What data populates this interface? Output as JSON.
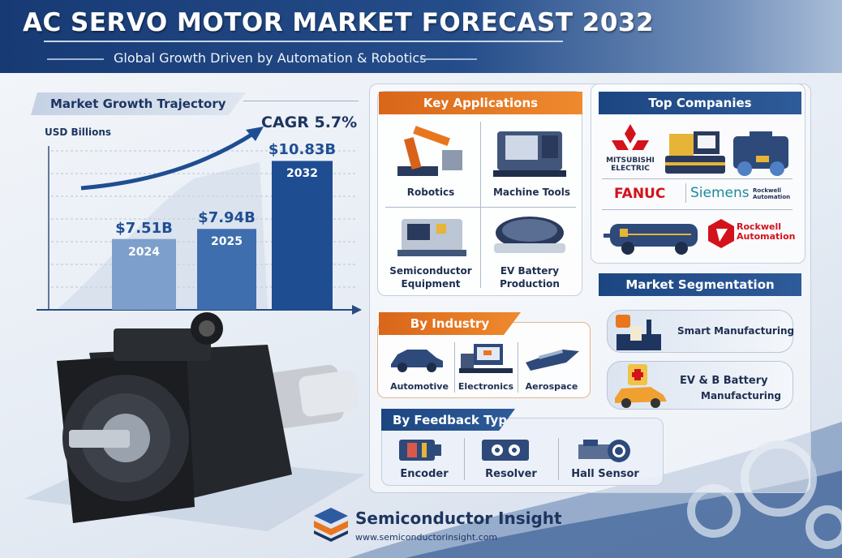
{
  "header": {
    "title": "AC SERVO MOTOR MARKET FORECAST 2032",
    "subtitle": "Global Growth Driven by Automation & Robotics"
  },
  "chart_section": {
    "tab_label": "Market Growth Trajectory",
    "cagr_label": "CAGR 5.7%"
  },
  "chart_data": {
    "type": "bar",
    "title": "Market Growth Trajectory",
    "ylabel": "USD Billions",
    "xlabel": "",
    "categories": [
      "2024",
      "2025",
      "2032"
    ],
    "values": [
      7.51,
      7.94,
      10.83
    ],
    "value_labels": [
      "$7.51B",
      "$7.94B",
      "$10.83B"
    ],
    "annotation": "CAGR 5.7%",
    "grid": true,
    "colors": [
      "#7d9fcc",
      "#3f6eaf",
      "#1f4d92"
    ]
  },
  "key_applications": {
    "title": "Key Applications",
    "items": [
      {
        "label": "Robotics",
        "icon": "robot-arm-icon"
      },
      {
        "label": "Machine Tools",
        "icon": "cnc-machine-icon"
      },
      {
        "label": "Semiconductor Equipment",
        "icon": "semiconductor-tool-icon"
      },
      {
        "label": "EV Battery Production",
        "icon": "battery-module-icon"
      }
    ]
  },
  "top_companies": {
    "title": "Top Companies",
    "mitsubishi": "MITSUBISHI ELECTRIC",
    "fanuc": "FANUC",
    "siemens": "Siemens",
    "rockwell_small": "Rockwell Automation",
    "rockwell": "Rockwell Automation",
    "colors": {
      "mitsubishi": "#d3121b",
      "fanuc": "#d3121b",
      "siemens": "#1a8a9a",
      "rockwell": "#d3121b"
    }
  },
  "market_segmentation": {
    "title": "Market Segmentation",
    "items": [
      {
        "label": "Smart Manufacturing",
        "icon": "factory-icon"
      },
      {
        "label_line1": "EV & B Battery",
        "label_line2": "Manufacturing",
        "icon": "ev-car-icon"
      }
    ]
  },
  "by_industry": {
    "title": "By Industry",
    "items": [
      {
        "label": "Automotive",
        "icon": "car-icon"
      },
      {
        "label": "Electronics",
        "icon": "electronics-machine-icon"
      },
      {
        "label": "Aerospace",
        "icon": "airplane-icon"
      }
    ]
  },
  "by_feedback": {
    "title": "By Feedback Type",
    "items": [
      {
        "label": "Encoder",
        "icon": "encoder-icon"
      },
      {
        "label": "Resolver",
        "icon": "resolver-icon"
      },
      {
        "label": "Hall Sensor",
        "icon": "hall-sensor-icon"
      }
    ]
  },
  "footer": {
    "brand": "Semiconductor Insight",
    "url": "www.semiconductorinsight.com"
  },
  "colors": {
    "navy": "#1c4682",
    "orange": "#e8761f",
    "light_bg": "#eef2f8"
  }
}
